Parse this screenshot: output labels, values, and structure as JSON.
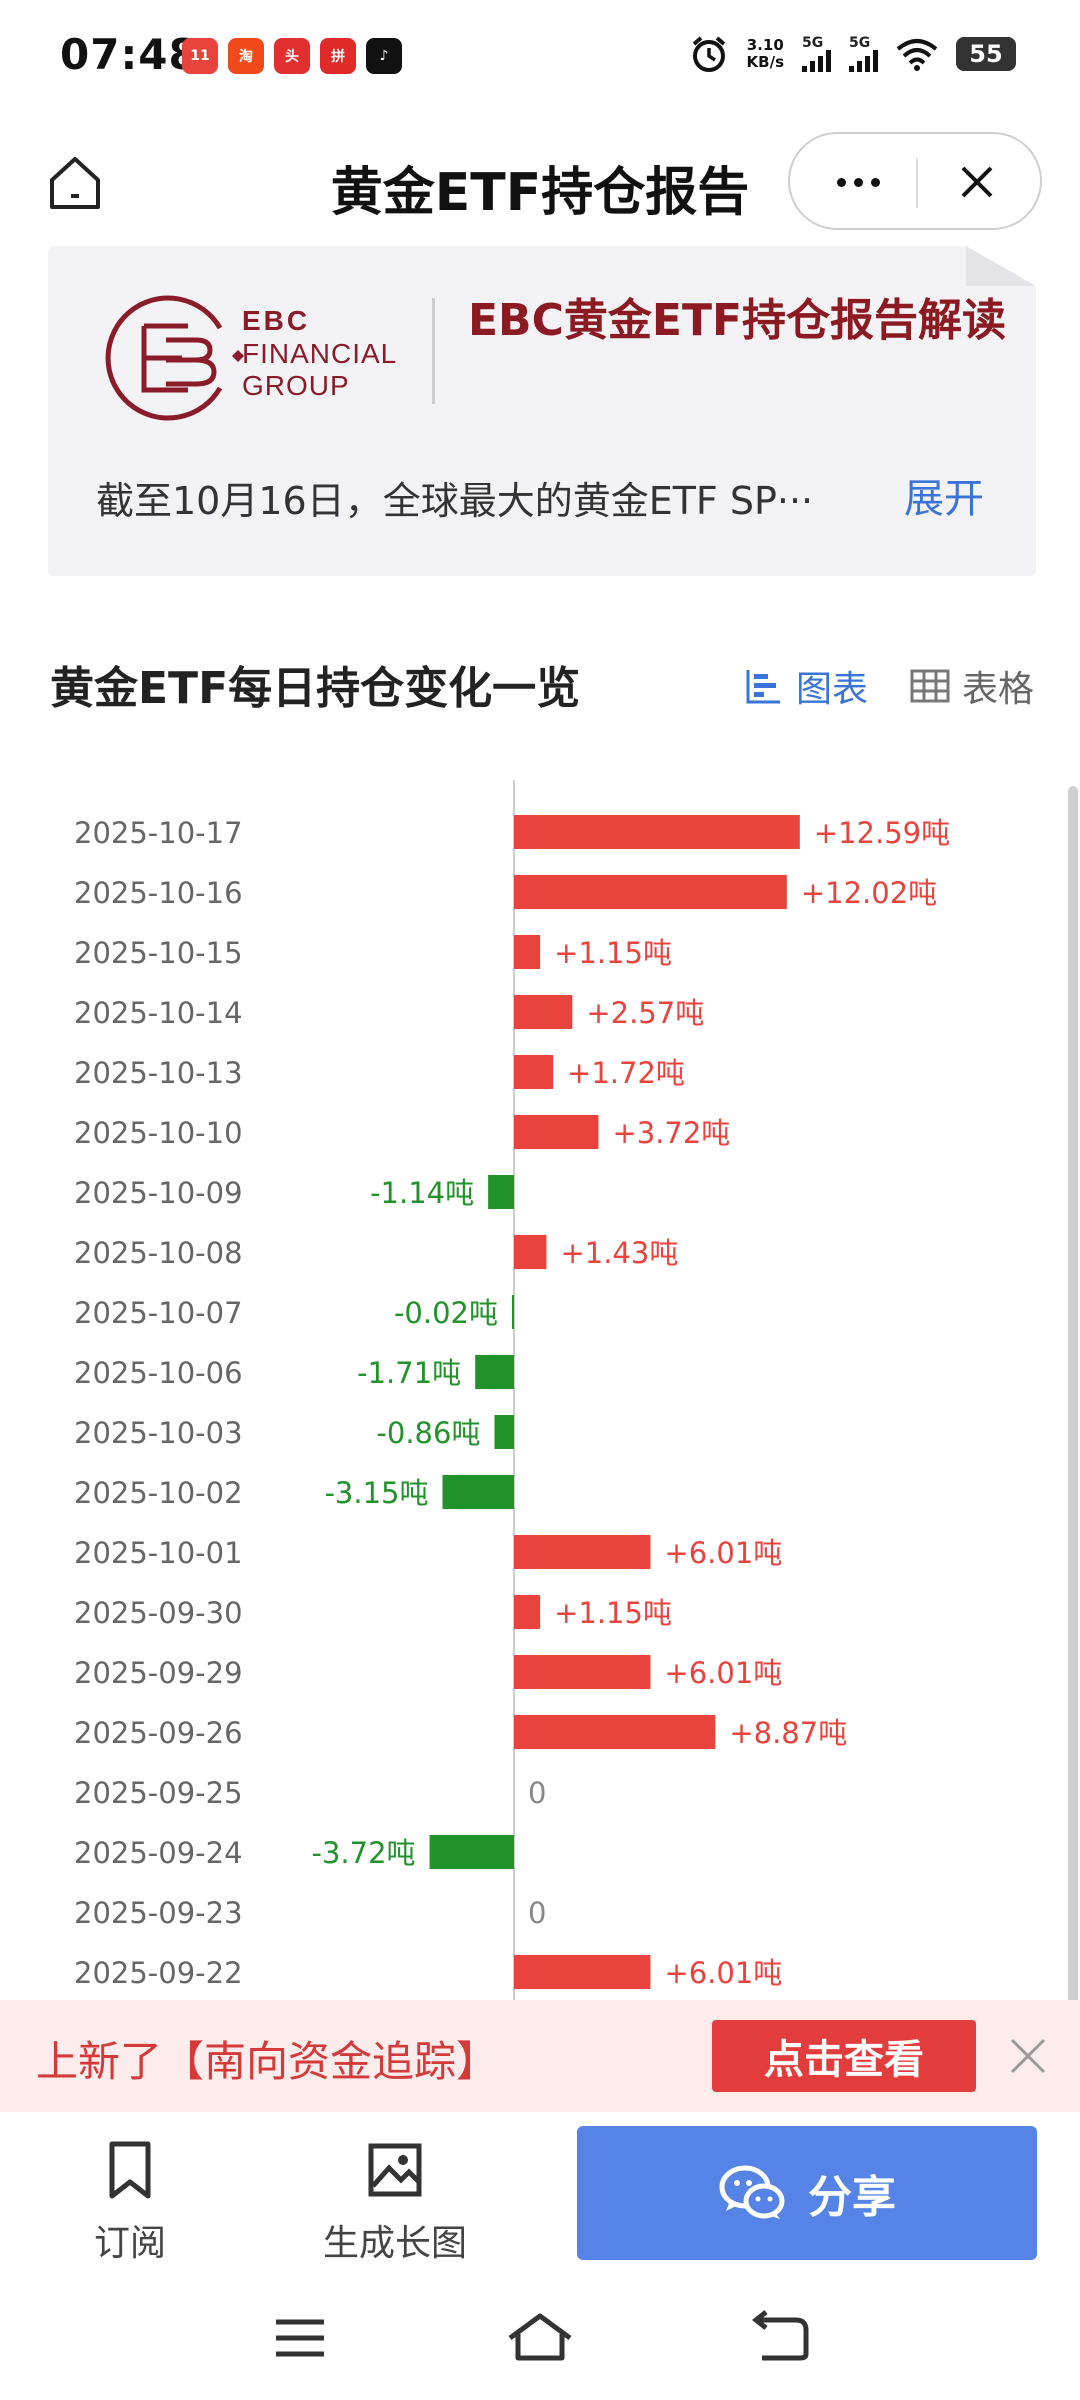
{
  "status_bar": {
    "time": "07:48",
    "app_icons": [
      "taobao-11-11",
      "taobao",
      "toutiao",
      "pinduoduo",
      "tiktok"
    ],
    "net_speed_value": "3.10",
    "net_speed_unit": "KB/s",
    "sim1": "5G",
    "sim2": "5G",
    "battery": "55"
  },
  "header": {
    "title": "黄金ETF持仓报告"
  },
  "banner": {
    "logo_line1": "EBC",
    "logo_line2": "FINANCIAL",
    "logo_line3": "GROUP",
    "title": "EBC黄金ETF持仓报告解读",
    "summary": "截至10月16日，全球最大的黄金ETF SP···",
    "expand": "展开"
  },
  "section": {
    "title": "黄金ETF每日持仓变化一览",
    "tab_chart": "图表",
    "tab_table": "表格"
  },
  "chart_data": {
    "type": "bar",
    "orientation": "horizontal",
    "unit": "吨",
    "categories": [
      "2025-10-17",
      "2025-10-16",
      "2025-10-15",
      "2025-10-14",
      "2025-10-13",
      "2025-10-10",
      "2025-10-09",
      "2025-10-08",
      "2025-10-07",
      "2025-10-06",
      "2025-10-03",
      "2025-10-02",
      "2025-10-01",
      "2025-09-30",
      "2025-09-29",
      "2025-09-26",
      "2025-09-25",
      "2025-09-24",
      "2025-09-23",
      "2025-09-22"
    ],
    "values": [
      12.59,
      12.02,
      1.15,
      2.57,
      1.72,
      3.72,
      -1.14,
      1.43,
      -0.02,
      -1.71,
      -0.86,
      -3.15,
      6.01,
      1.15,
      6.01,
      8.87,
      0,
      -3.72,
      0,
      6.01
    ],
    "labels": [
      "+12.59吨",
      "+12.02吨",
      "+1.15吨",
      "+2.57吨",
      "+1.72吨",
      "+3.72吨",
      "-1.14吨",
      "+1.43吨",
      "-0.02吨",
      "-1.71吨",
      "-0.86吨",
      "-3.15吨",
      "+6.01吨",
      "+1.15吨",
      "+6.01吨",
      "+8.87吨",
      "0",
      "-3.72吨",
      "0",
      "+6.01吨"
    ],
    "colors": {
      "positive": "#e8433d",
      "negative": "#22922b",
      "zero_label": "#888888"
    }
  },
  "notice": {
    "text": "上新了【南向资金追踪】",
    "button": "点击查看"
  },
  "bottom_bar": {
    "subscribe": "订阅",
    "long_image": "生成长图",
    "share": "分享"
  },
  "colors": {
    "accent_blue": "#3a74d8",
    "share_button": "#5584e6",
    "banner_title": "#8b1a22",
    "notice_red": "#e33c3c"
  }
}
